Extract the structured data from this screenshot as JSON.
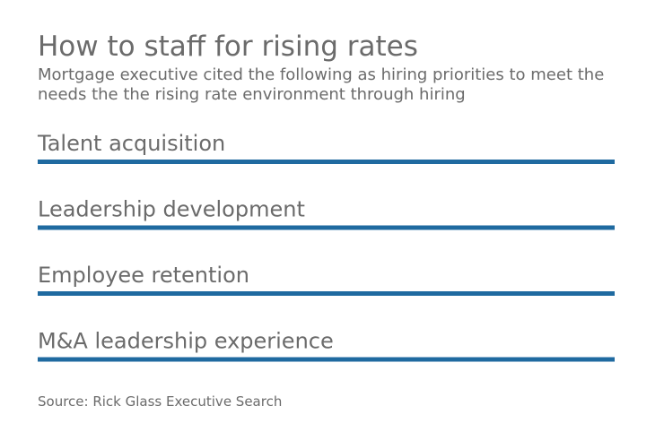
{
  "header": {
    "title": "How to staff for rising rates",
    "subtitle": "Mortgage executive cited the following as hiring priorities to meet the needs the the rising rate environment through hiring"
  },
  "footer": {
    "source": "Source: Rick Glass Executive Search"
  },
  "colors": {
    "bar": "#1f6aa0",
    "text": "#6b6b6b"
  },
  "chart_data": {
    "type": "bar",
    "orientation": "horizontal",
    "title": "How to staff for rising rates",
    "categories": [
      "Talent acquisition",
      "Leadership development",
      "Employee retention",
      "M&A leadership experience"
    ],
    "values": [
      1,
      1,
      1,
      1
    ],
    "xlabel": "",
    "ylabel": "",
    "xlim": [
      0,
      1
    ],
    "grid": false
  }
}
